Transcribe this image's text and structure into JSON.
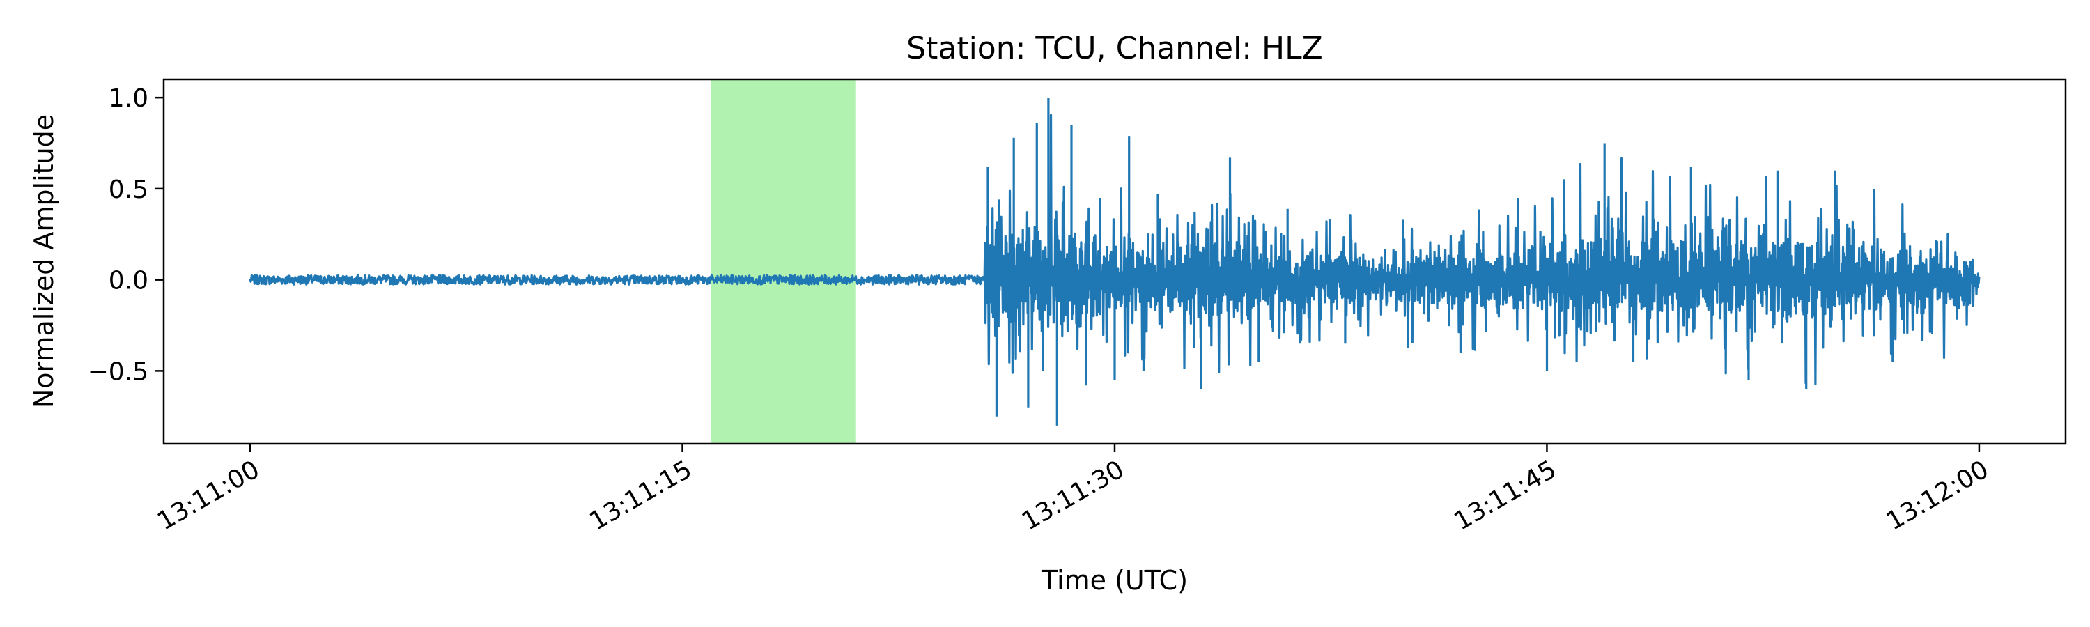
{
  "chart_data": {
    "type": "line",
    "title": "Station: TCU, Channel: HLZ",
    "xlabel": "Time (UTC)",
    "ylabel": "Normalized Amplitude",
    "x_axis": {
      "kind": "time",
      "range": [
        "13:10:57",
        "13:12:03"
      ],
      "ticks": [
        "13:11:00",
        "13:11:15",
        "13:11:30",
        "13:11:45",
        "13:12:00"
      ]
    },
    "y_axis": {
      "range": [
        -0.9,
        1.1
      ],
      "ticks": [
        -0.5,
        0.0,
        0.5,
        1.0
      ],
      "tick_labels": [
        "−0.5",
        "0.0",
        "0.5",
        "1.0"
      ]
    },
    "grid": false,
    "highlight": {
      "start": "13:11:16",
      "end": "13:11:21",
      "color": "#b2f2b0"
    },
    "series": [
      {
        "color": "#1f77b4",
        "points": [
          [
            "13:11:00",
            0.0
          ],
          [
            "13:11:05",
            0.01
          ],
          [
            "13:11:10",
            0.0
          ],
          [
            "13:11:15",
            0.01
          ],
          [
            "13:11:20",
            0.01
          ],
          [
            "13:11:25",
            0.0
          ],
          [
            "13:11:25.6",
            0.62
          ],
          [
            "13:11:25.9",
            -0.75
          ],
          [
            "13:11:26.5",
            0.78
          ],
          [
            "13:11:27",
            -0.7
          ],
          [
            "13:11:27.3",
            0.86
          ],
          [
            "13:11:27.5",
            -0.5
          ],
          [
            "13:11:27.7",
            1.0
          ],
          [
            "13:11:28",
            -0.8
          ],
          [
            "13:11:28.5",
            0.85
          ],
          [
            "13:11:29",
            -0.58
          ],
          [
            "13:11:29.5",
            0.45
          ],
          [
            "13:11:30",
            -0.55
          ],
          [
            "13:11:30.5",
            0.79
          ],
          [
            "13:11:31",
            -0.5
          ],
          [
            "13:11:31.5",
            0.47
          ],
          [
            "13:11:33",
            -0.6
          ],
          [
            "13:11:34",
            0.67
          ],
          [
            "13:11:35",
            -0.45
          ],
          [
            "13:11:36",
            0.39
          ],
          [
            "13:11:38",
            -0.35
          ],
          [
            "13:11:40",
            0.33
          ],
          [
            "13:11:42",
            -0.4
          ],
          [
            "13:11:44",
            0.45
          ],
          [
            "13:11:45",
            -0.5
          ],
          [
            "13:11:47",
            0.75
          ],
          [
            "13:11:48",
            -0.45
          ],
          [
            "13:11:50",
            0.62
          ],
          [
            "13:11:52",
            -0.55
          ],
          [
            "13:11:53",
            0.6
          ],
          [
            "13:11:54",
            -0.6
          ],
          [
            "13:11:55",
            0.6
          ],
          [
            "13:11:57",
            -0.45
          ],
          [
            "13:11:59",
            0.3
          ],
          [
            "13:12:00",
            0.0
          ]
        ]
      }
    ]
  }
}
